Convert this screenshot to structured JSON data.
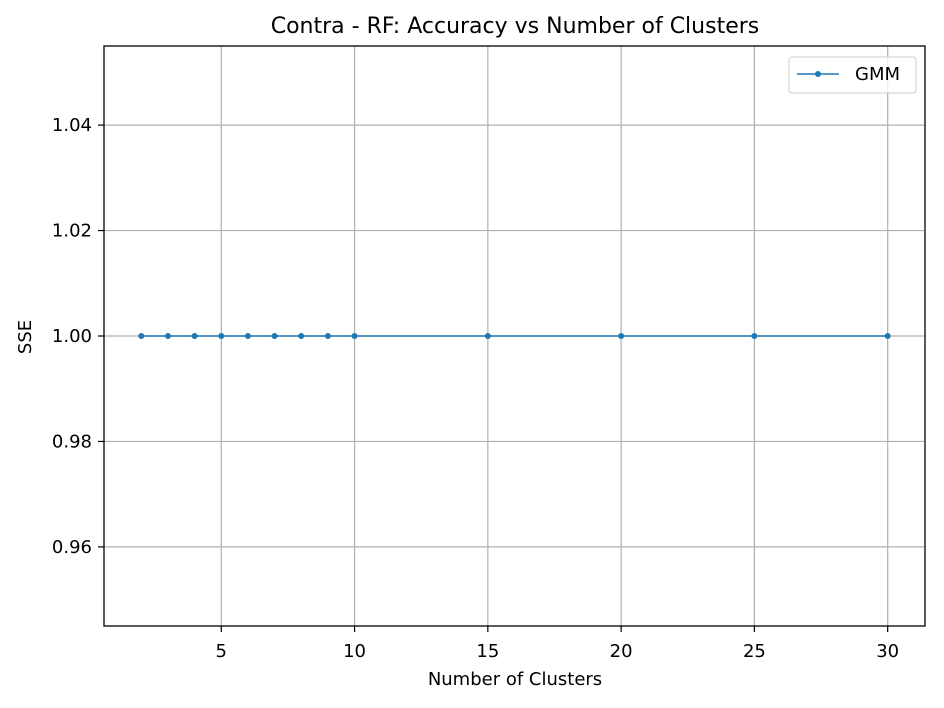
{
  "chart_data": {
    "type": "line",
    "title": "Contra - RF: Accuracy vs Number of Clusters",
    "xlabel": "Number of Clusters",
    "ylabel": "SSE",
    "xlim": [
      0.6,
      31.4
    ],
    "ylim": [
      0.945,
      1.055
    ],
    "xticks": [
      5,
      10,
      15,
      20,
      25,
      30
    ],
    "xtick_labels": [
      "5",
      "10",
      "15",
      "20",
      "25",
      "30"
    ],
    "yticks": [
      0.96,
      0.98,
      1.0,
      1.02,
      1.04
    ],
    "ytick_labels": [
      "0.96",
      "0.98",
      "1.00",
      "1.02",
      "1.04"
    ],
    "grid": true,
    "legend_position": "upper right",
    "series": [
      {
        "name": "GMM",
        "color": "#1f77b4",
        "marker": "dot",
        "x": [
          2,
          3,
          4,
          5,
          6,
          7,
          8,
          9,
          10,
          15,
          20,
          25,
          30
        ],
        "y": [
          1.0,
          1.0,
          1.0,
          1.0,
          1.0,
          1.0,
          1.0,
          1.0,
          1.0,
          1.0,
          1.0,
          1.0,
          1.0
        ]
      }
    ]
  }
}
